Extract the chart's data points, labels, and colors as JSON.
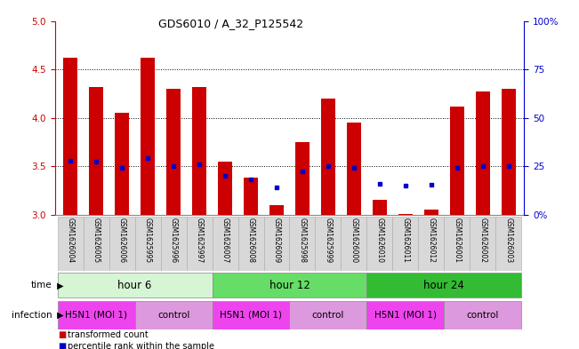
{
  "title": "GDS6010 / A_32_P125542",
  "samples": [
    "GSM1626004",
    "GSM1626005",
    "GSM1626006",
    "GSM1625995",
    "GSM1625996",
    "GSM1625997",
    "GSM1626007",
    "GSM1626008",
    "GSM1626009",
    "GSM1625998",
    "GSM1625999",
    "GSM1626000",
    "GSM1626010",
    "GSM1626011",
    "GSM1626012",
    "GSM1626001",
    "GSM1626002",
    "GSM1626003"
  ],
  "red_values": [
    4.62,
    4.32,
    4.05,
    4.62,
    4.3,
    4.32,
    3.55,
    3.38,
    3.1,
    3.75,
    4.2,
    3.95,
    3.15,
    3.01,
    3.05,
    4.12,
    4.27,
    4.3
  ],
  "blue_values": [
    3.56,
    3.55,
    3.48,
    3.58,
    3.5,
    3.52,
    3.4,
    3.36,
    3.28,
    3.45,
    3.5,
    3.48,
    3.32,
    3.3,
    3.31,
    3.48,
    3.5,
    3.5
  ],
  "ylim_left": [
    3.0,
    5.0
  ],
  "ylim_right": [
    0,
    100
  ],
  "yticks_left": [
    3.0,
    3.5,
    4.0,
    4.5,
    5.0
  ],
  "yticks_right": [
    0,
    25,
    50,
    75,
    100
  ],
  "ytick_right_labels": [
    "0%",
    "25",
    "50",
    "75",
    "100%"
  ],
  "bar_color": "#cc0000",
  "dot_color": "#0000cc",
  "bg_color": "#ffffff",
  "plot_bg": "#ffffff",
  "grid_color": "#000000",
  "grid_values": [
    3.5,
    4.0,
    4.5
  ],
  "time_groups": [
    {
      "label": "hour 6",
      "start": 0,
      "end": 5,
      "color": "#d5f5d5"
    },
    {
      "label": "hour 12",
      "start": 6,
      "end": 11,
      "color": "#66dd66"
    },
    {
      "label": "hour 24",
      "start": 12,
      "end": 17,
      "color": "#33bb33"
    }
  ],
  "infection_groups": [
    {
      "label": "H5N1 (MOI 1)",
      "start": 0,
      "end": 2,
      "color": "#ee44ee"
    },
    {
      "label": "control",
      "start": 3,
      "end": 5,
      "color": "#dd99dd"
    },
    {
      "label": "H5N1 (MOI 1)",
      "start": 6,
      "end": 8,
      "color": "#ee44ee"
    },
    {
      "label": "control",
      "start": 9,
      "end": 11,
      "color": "#dd99dd"
    },
    {
      "label": "H5N1 (MOI 1)",
      "start": 12,
      "end": 14,
      "color": "#ee44ee"
    },
    {
      "label": "control",
      "start": 15,
      "end": 17,
      "color": "#dd99dd"
    }
  ],
  "legend_items": [
    {
      "label": "transformed count",
      "color": "#cc0000"
    },
    {
      "label": "percentile rank within the sample",
      "color": "#0000cc"
    }
  ],
  "left_axis_color": "#cc0000",
  "right_axis_color": "#0000cc",
  "bar_width": 0.55
}
